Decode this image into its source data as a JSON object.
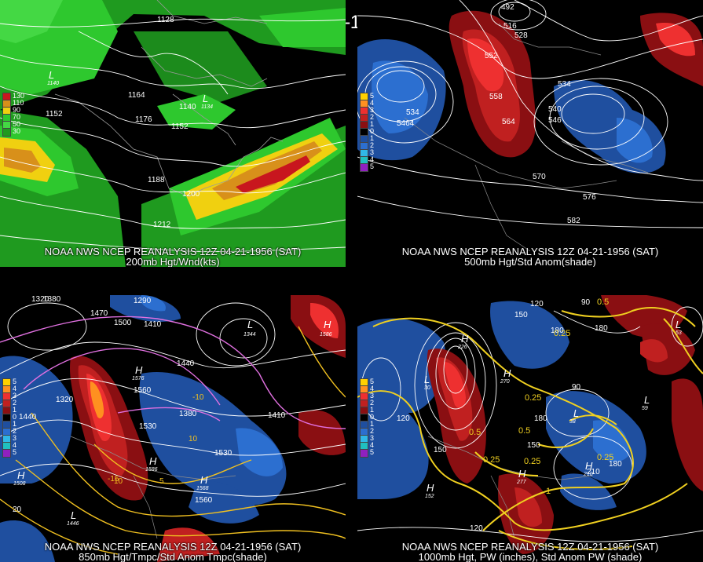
{
  "title": "12Z 04-21-1956 (SAT)",
  "panels": {
    "tl": {
      "line1": "NOAA NWS NCEP REANALYSIS 12Z 04-21-1956 (SAT)",
      "line2": "200mb Hgt/Wnd(kts)",
      "legend": [
        {
          "label": "130",
          "color": "#c8161e"
        },
        {
          "label": "110",
          "color": "#d8901a"
        },
        {
          "label": "90",
          "color": "#f0d010"
        },
        {
          "label": "70",
          "color": "#2ec82e"
        },
        {
          "label": "50",
          "color": "#44d844"
        },
        {
          "label": "30",
          "color": "#1f9a1f"
        }
      ],
      "contour_labels": [
        "1128",
        "1140",
        "1164",
        "1152",
        "1176",
        "1140",
        "1134",
        "1152",
        "1188",
        "1200",
        "1212"
      ],
      "h_l_labels": [
        "L",
        "1140",
        "L",
        "1134"
      ]
    },
    "tr": {
      "line1": "NOAA NWS NCEP REANALYSIS 12Z 04-21-1956 (SAT)",
      "line2": "500mb Hgt/Std Anom(shade)",
      "legend": [
        {
          "label": "5",
          "color": "#ffd000"
        },
        {
          "label": "4",
          "color": "#ff9020"
        },
        {
          "label": "3",
          "color": "#ee3030"
        },
        {
          "label": "2",
          "color": "#c02020"
        },
        {
          "label": "1",
          "color": "#8a0f12"
        },
        {
          "label": "0",
          "color": "#000000"
        },
        {
          "label": "1",
          "color": "#1f4f9f"
        },
        {
          "label": "2",
          "color": "#2c6fd0"
        },
        {
          "label": "3",
          "color": "#30b8e8"
        },
        {
          "label": "4",
          "color": "#20c0c0"
        },
        {
          "label": "5",
          "color": "#9020c0"
        }
      ],
      "contour_labels": [
        "492",
        "516",
        "528",
        "552",
        "534",
        "534",
        "5464",
        "546",
        "540",
        "558",
        "564",
        "540",
        "5528",
        "570",
        "576",
        "582"
      ]
    },
    "bl": {
      "line1": "NOAA NWS NCEP REANALYSIS 12Z 04-21-1956 (SAT)",
      "line2": "850mb Hgt/Tmpc/Std Anom Tmpc(shade)",
      "contour_labels": [
        "1320",
        "1380",
        "1290",
        "1470",
        "1500",
        "1410",
        "1440",
        "1560",
        "1380",
        "1530",
        "1410",
        "1440",
        "1380",
        "1320",
        "1560",
        "1530",
        "10",
        "-10",
        "-5",
        "10",
        "-15",
        "5",
        "-20",
        "20",
        "-20"
      ],
      "h_l_labels": [
        "H",
        "1576",
        "H",
        "1586",
        "H",
        "1568",
        "L",
        "1344",
        "L",
        "1446",
        "H",
        "1586",
        "H",
        "1508"
      ]
    },
    "br": {
      "line1": "NOAA NWS NCEP REANALYSIS 12Z 04-21-1956 (SAT)",
      "line2": "1000mb Hgt, PW (inches), Std Anom PW (shade)",
      "contour_labels": [
        "120",
        "150",
        "90",
        "180",
        "0.25",
        "0.5",
        "0.5",
        "0.25",
        "180",
        "90",
        "120",
        "150",
        "0.25",
        "0.25",
        "180",
        "1",
        "120",
        "210",
        "150",
        "180",
        "120",
        "0.25",
        "0.5"
      ],
      "h_l_labels": [
        "H",
        "226",
        "L",
        "30",
        "H",
        "270",
        "L",
        "38",
        "L",
        "59",
        "L",
        "53",
        "H",
        "277",
        "H",
        "210",
        "H",
        "152"
      ]
    }
  }
}
